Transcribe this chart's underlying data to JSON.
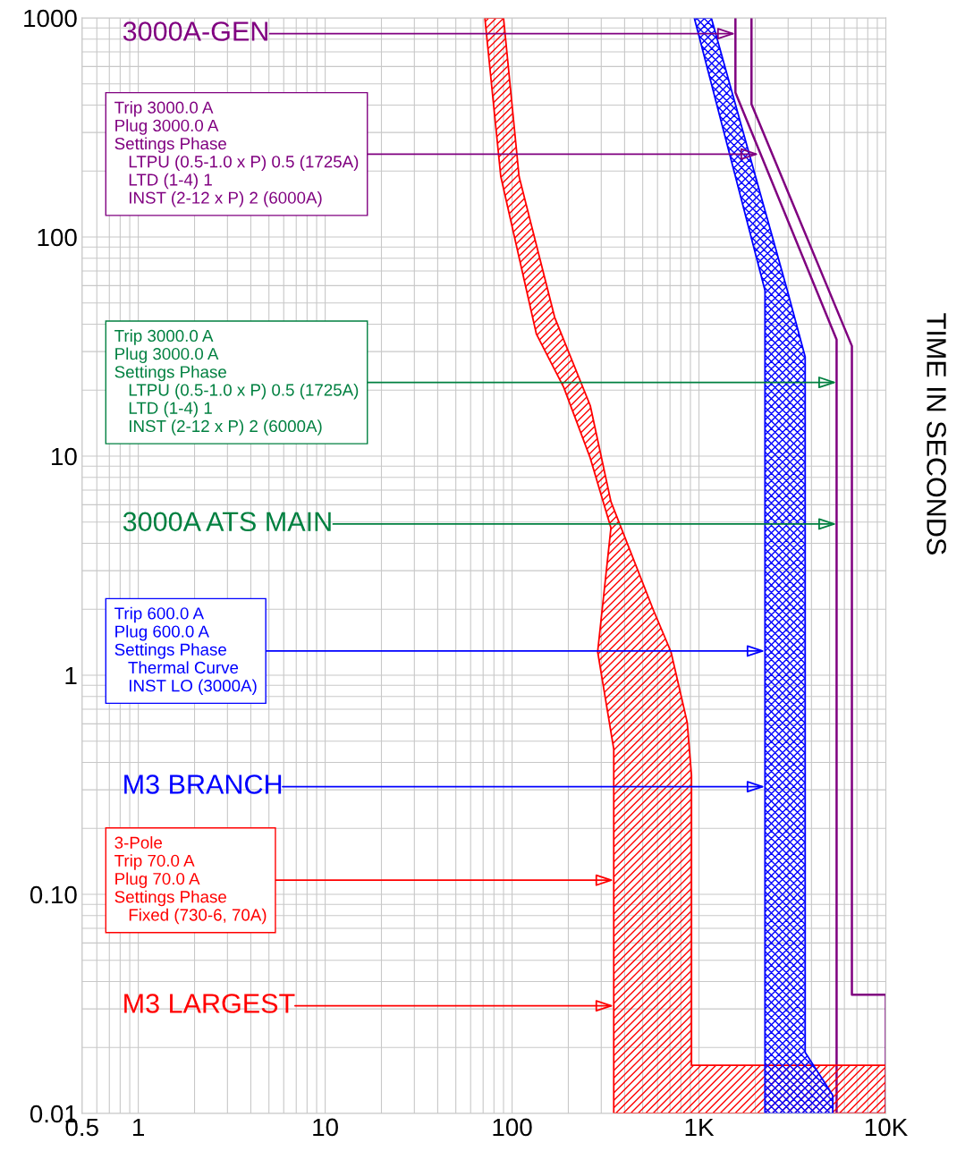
{
  "chart_data": {
    "type": "area",
    "ylabel": "TIME IN SECONDS",
    "log": "xy",
    "grid": true,
    "xlim": [
      0.5,
      10000
    ],
    "ylim": [
      0.01,
      1000
    ],
    "xticks": [
      0.5,
      1,
      10,
      100,
      {
        "value": 1000,
        "label": "1K"
      },
      {
        "value": 10000,
        "label": "10K"
      }
    ],
    "yticks": [
      0.01,
      {
        "value": 0.1,
        "label": "0.10"
      },
      1,
      10,
      100,
      1000
    ],
    "series": [
      {
        "type": "line",
        "color": "#800080",
        "x": [
          1567,
          1567,
          5450,
          5450,
          10000,
          10000,
          6580,
          6580,
          1910,
          1910
        ],
        "values": [
          1000,
          456,
          34,
          0.01,
          0.01,
          0.0348,
          0.0348,
          31.8,
          404,
          1000
        ]
      },
      {
        "color": "#0000ff",
        "x": [
          944,
          2255,
          2255,
          5200,
          5200,
          3700,
          3700,
          2970,
          1164
        ],
        "values": [
          1000,
          57,
          0.01,
          0.01,
          0.0121,
          0.019,
          28.4,
          57,
          1000
        ]
      },
      {
        "color": "#ff0000",
        "x": [
          71.5,
          87,
          135,
          189,
          262,
          338,
          287,
          350,
          350,
          10000,
          10000,
          912,
          912,
          865,
          708,
          568,
          338,
          262,
          169,
          109,
          90
        ],
        "values": [
          1000,
          189,
          36,
          20.6,
          9.8,
          4.7,
          1.28,
          0.46,
          0.01,
          0.01,
          0.0166,
          0.0166,
          0.35,
          0.61,
          1.28,
          2.0,
          6.2,
          17,
          43,
          189,
          1000
        ]
      }
    ],
    "annotations": [
      {
        "text": "3000A-GEN",
        "x": 1567,
        "y": 847
      },
      {
        "text": "Trip 3000.0 A\nPlug 3000.0 A\nSettings Phase\n   LTPU (0.5-1.0 x P) 0.5 (1725A)\n   LTD (1-4) 1\n   INST (2-12 x P) 2 (6000A)",
        "x": 2088,
        "y": 239
      },
      {
        "text": "Trip 3000.0 A\nPlug 3000.0 A\nSettings Phase\n   LTPU (0.5-1.0 x P) 0.5 (1725A)\n   LTD (1-4) 1\n   INST (2-12 x P) 2 (6000A)",
        "x": 5450,
        "y": 21.7
      },
      {
        "text": "3000A ATS MAIN",
        "x": 5450,
        "y": 4.9
      },
      {
        "text": "Trip 600.0 A\nPlug 600.0 A\nSettings Phase\n   Thermal Curve\n   INST LO (3000A)",
        "x": 2255,
        "y": 1.29
      },
      {
        "text": "M3 BRANCH",
        "x": 2255,
        "y": 0.31
      },
      {
        "text": "3-Pole\nTrip 70.0 A\nPlug 70.0 A\nSettings Phase\n   Fixed (730-6, 70A)",
        "x": 350,
        "y": 0.116
      },
      {
        "text": "M3 LARGEST",
        "x": 350,
        "y": 0.031
      }
    ]
  }
}
